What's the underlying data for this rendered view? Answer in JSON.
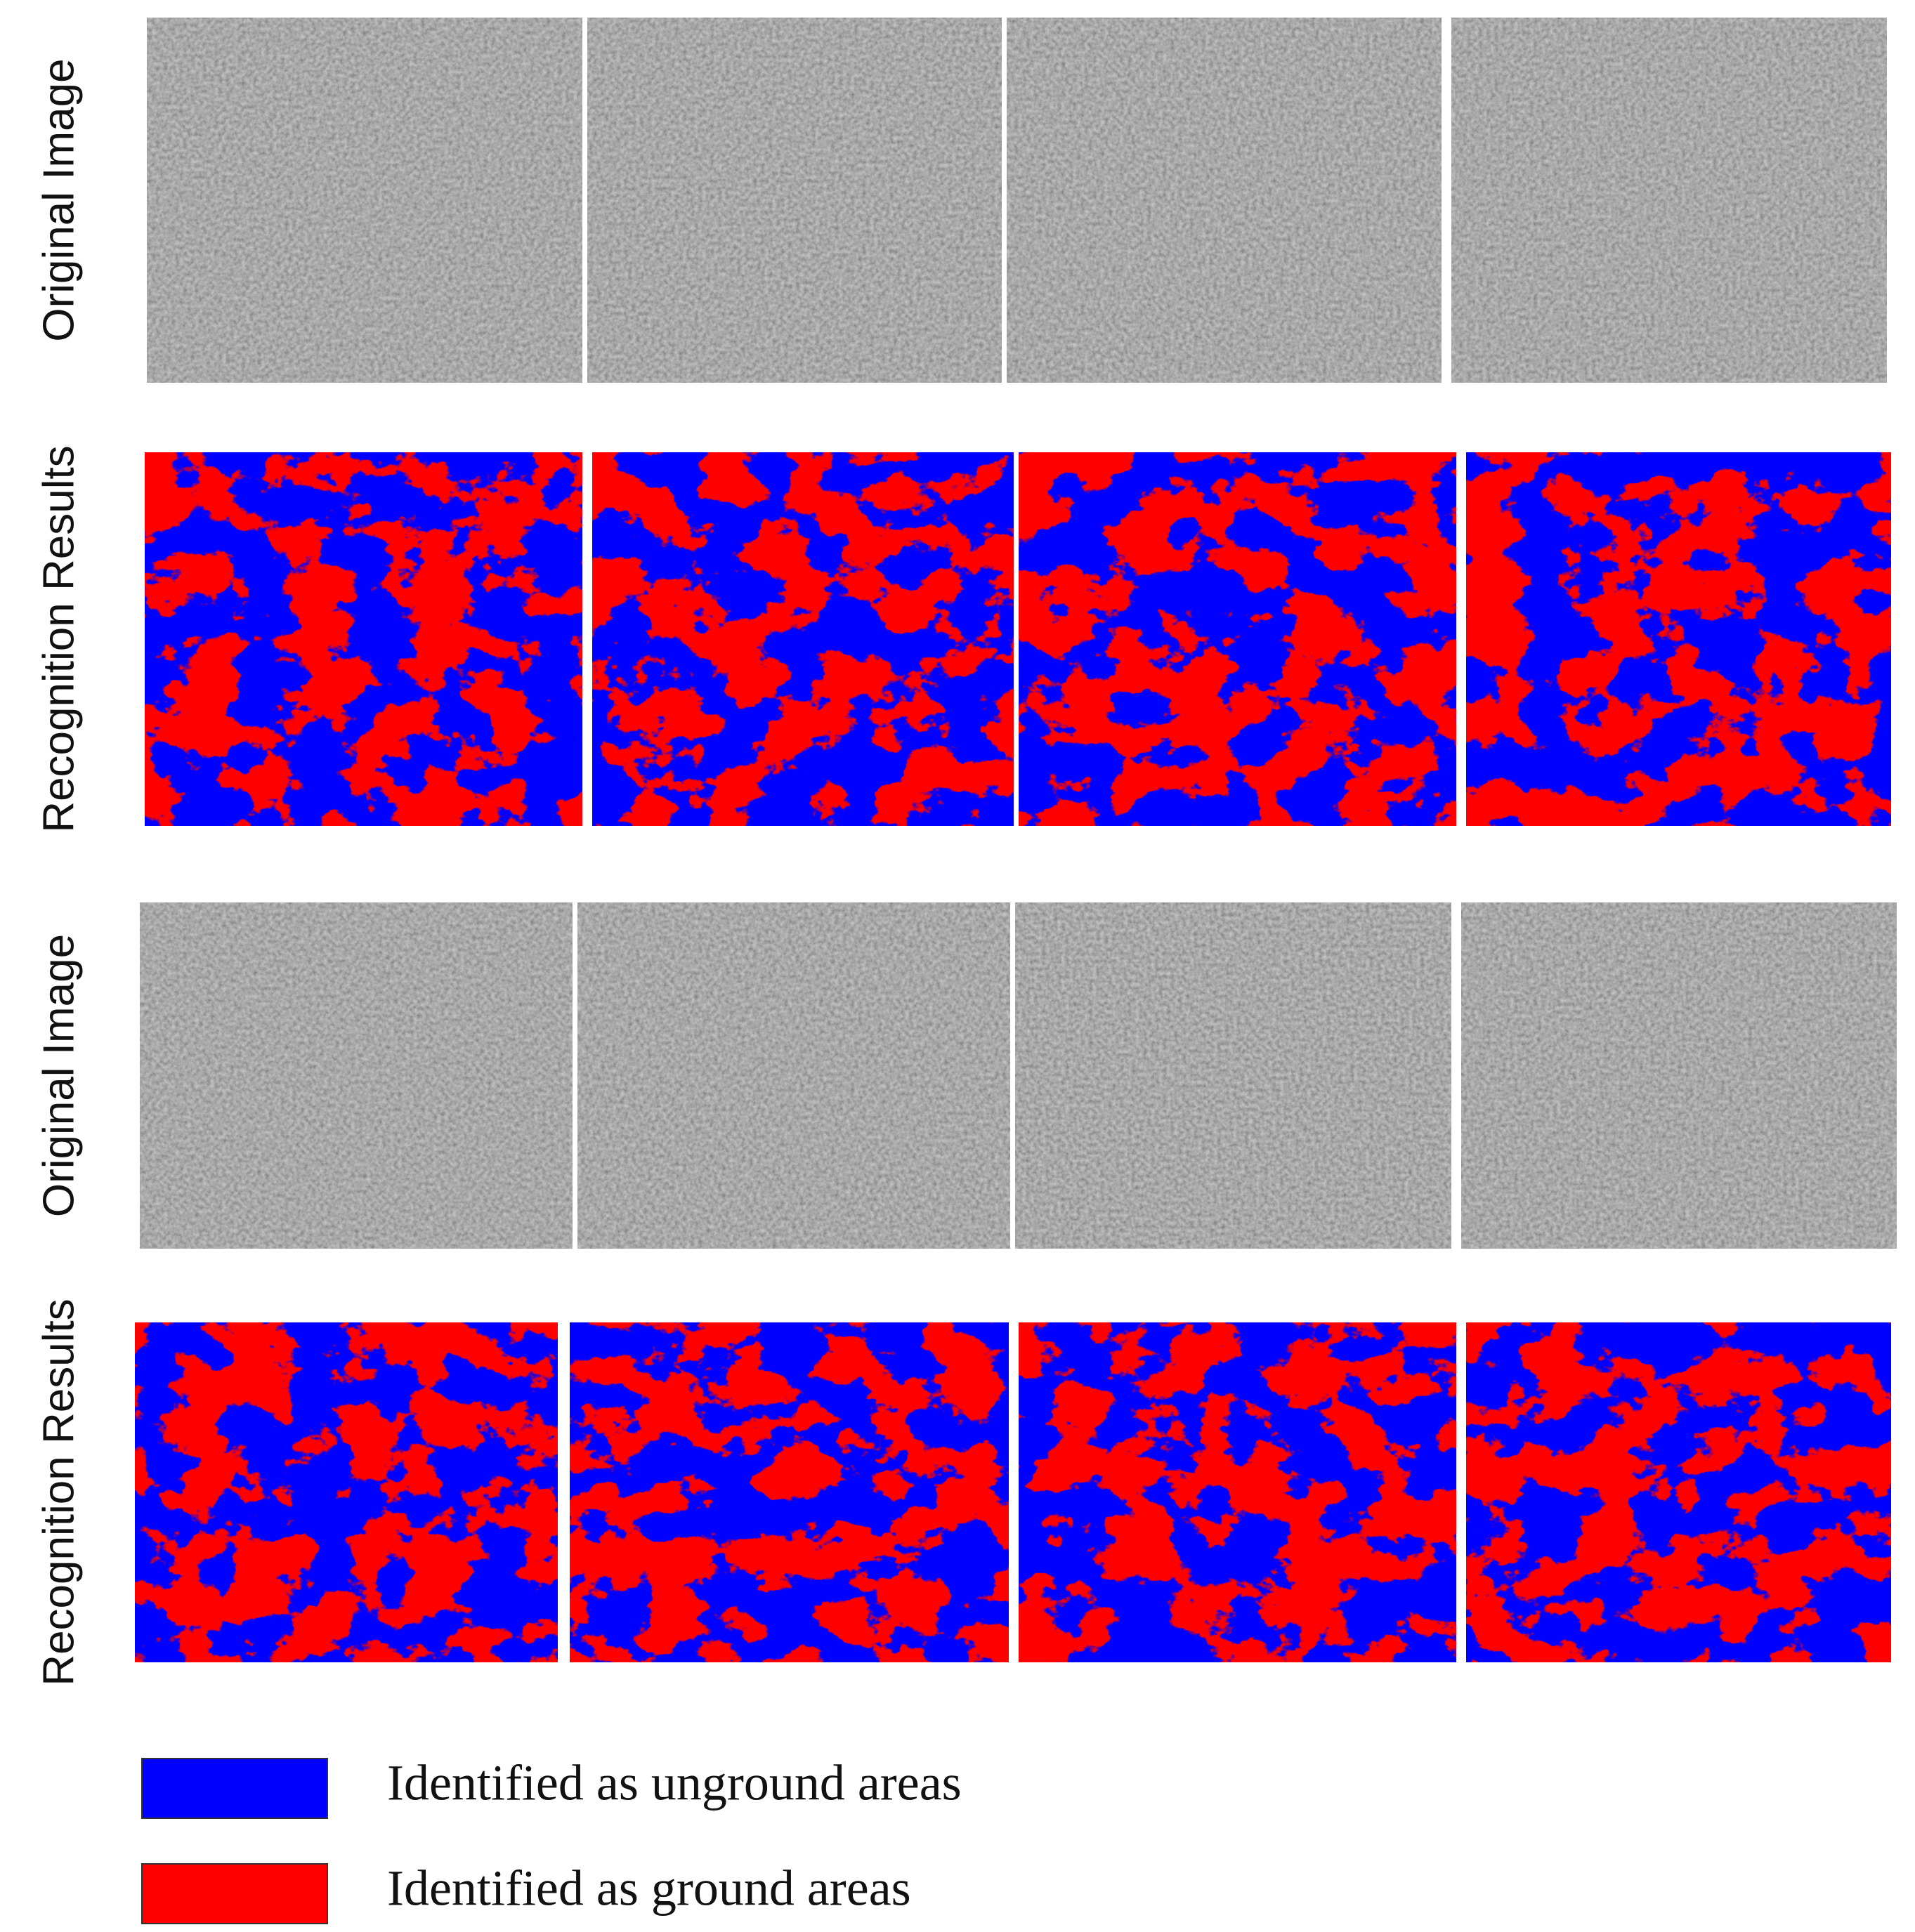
{
  "rows": [
    {
      "label": "Original Image"
    },
    {
      "label": "Recognition Results"
    },
    {
      "label": "Original Image"
    },
    {
      "label": "Recognition Results"
    }
  ],
  "legend": [
    {
      "label": "Identified as unground areas",
      "color": "#0000ff"
    },
    {
      "label": "Identified as ground areas",
      "color": "#ff0000"
    }
  ]
}
